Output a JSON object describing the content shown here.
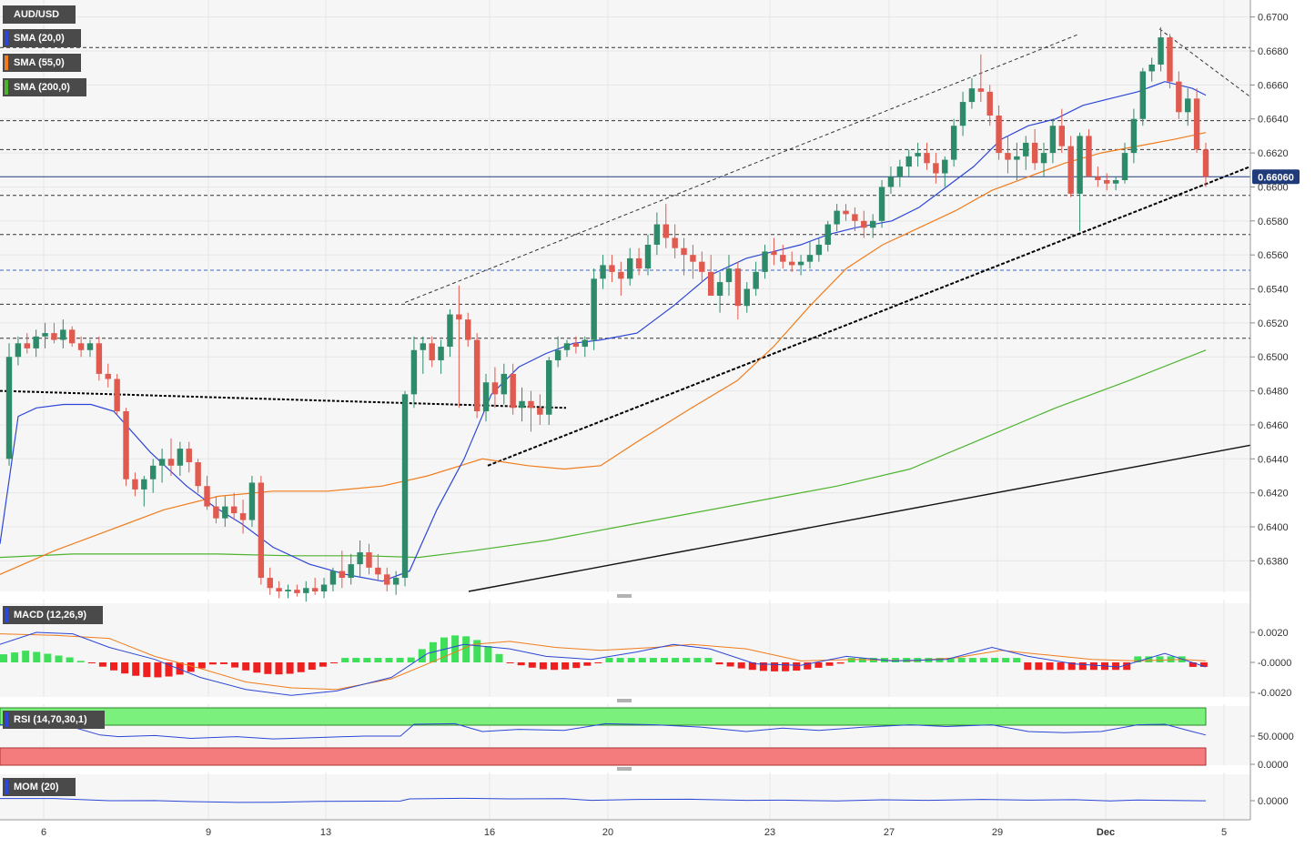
{
  "instrument": "AUD/USD",
  "legend": [
    {
      "label": "SMA (20,0)",
      "color": "#2c46d6"
    },
    {
      "label": "SMA (55,0)",
      "color": "#f07c1c"
    },
    {
      "label": "SMA (200,0)",
      "color": "#4db32f"
    }
  ],
  "last_price": "0.66060",
  "price_axis": [
    "0.6700",
    "0.6680",
    "0.6660",
    "0.6640",
    "0.6620",
    "0.6600",
    "0.6580",
    "0.6560",
    "0.6540",
    "0.6520",
    "0.6500",
    "0.6480",
    "0.6460",
    "0.6440",
    "0.6420",
    "0.6400",
    "0.6380"
  ],
  "x_axis": [
    "6",
    "9",
    "13",
    "16",
    "20",
    "23",
    "27",
    "29",
    "Dec",
    "5"
  ],
  "panels": {
    "macd": {
      "label": "MACD (12,26,9)",
      "ticks": [
        "0.0020",
        "-0.0000",
        "-0.0020"
      ]
    },
    "rsi": {
      "label": "RSI (14,70,30,1)",
      "ticks": [
        "50.0000",
        "0.0000"
      ]
    },
    "mom": {
      "label": "MOM (20)",
      "ticks": [
        "0.0000"
      ]
    }
  },
  "colors": {
    "bull": "#2e8b6a",
    "bear": "#e05a50",
    "sma20": "#2c46d6",
    "sma55": "#f07c1c",
    "sma200": "#4db32f",
    "macd_pos": "#3ee05a",
    "macd_neg": "#ef1f1f",
    "rsi_over": "#7cf07c",
    "rsi_under": "#f47c7c"
  },
  "chart_data": {
    "type": "candlestick",
    "title": "AUD/USD",
    "ylim": [
      0.6362,
      0.671
    ],
    "horizontal_levels": [
      0.6682,
      0.6639,
      0.6622,
      0.6595,
      0.6572,
      0.6551,
      0.6531,
      0.6511
    ],
    "candles_ohlc": [
      [
        0.644,
        0.6508,
        0.6436,
        0.65
      ],
      [
        0.65,
        0.6512,
        0.6495,
        0.6508
      ],
      [
        0.6508,
        0.6514,
        0.6502,
        0.6505
      ],
      [
        0.6505,
        0.6516,
        0.65,
        0.6512
      ],
      [
        0.6512,
        0.652,
        0.6505,
        0.6514
      ],
      [
        0.6514,
        0.652,
        0.6508,
        0.651
      ],
      [
        0.651,
        0.6522,
        0.6505,
        0.6516
      ],
      [
        0.6516,
        0.6518,
        0.6506,
        0.6508
      ],
      [
        0.6508,
        0.6512,
        0.65,
        0.6504
      ],
      [
        0.6504,
        0.651,
        0.65,
        0.6508
      ],
      [
        0.6508,
        0.6512,
        0.6486,
        0.649
      ],
      [
        0.649,
        0.6496,
        0.6482,
        0.6487
      ],
      [
        0.6487,
        0.649,
        0.6466,
        0.6468
      ],
      [
        0.6468,
        0.647,
        0.6424,
        0.6428
      ],
      [
        0.6428,
        0.6432,
        0.6418,
        0.6422
      ],
      [
        0.6422,
        0.643,
        0.6412,
        0.6428
      ],
      [
        0.6428,
        0.644,
        0.642,
        0.6436
      ],
      [
        0.6436,
        0.6446,
        0.6426,
        0.644
      ],
      [
        0.644,
        0.6452,
        0.643,
        0.6436
      ],
      [
        0.6436,
        0.645,
        0.643,
        0.6446
      ],
      [
        0.6446,
        0.645,
        0.6432,
        0.6438
      ],
      [
        0.6438,
        0.644,
        0.642,
        0.6424
      ],
      [
        0.6424,
        0.643,
        0.641,
        0.6412
      ],
      [
        0.6412,
        0.6418,
        0.6402,
        0.6405
      ],
      [
        0.6405,
        0.6418,
        0.64,
        0.6412
      ],
      [
        0.6412,
        0.642,
        0.6404,
        0.6408
      ],
      [
        0.6408,
        0.6416,
        0.6396,
        0.6404
      ],
      [
        0.6404,
        0.643,
        0.64,
        0.6426
      ],
      [
        0.6426,
        0.643,
        0.6366,
        0.637
      ],
      [
        0.637,
        0.6376,
        0.636,
        0.6364
      ],
      [
        0.6364,
        0.6368,
        0.6358,
        0.6362
      ],
      [
        0.6362,
        0.6366,
        0.6358,
        0.6363
      ],
      [
        0.6363,
        0.6366,
        0.6359,
        0.6361
      ],
      [
        0.6361,
        0.6368,
        0.6356,
        0.6364
      ],
      [
        0.6364,
        0.637,
        0.636,
        0.6362
      ],
      [
        0.6362,
        0.637,
        0.6358,
        0.6366
      ],
      [
        0.6366,
        0.6376,
        0.6362,
        0.6374
      ],
      [
        0.6374,
        0.6386,
        0.6364,
        0.637
      ],
      [
        0.637,
        0.6384,
        0.6366,
        0.6378
      ],
      [
        0.6378,
        0.6392,
        0.637,
        0.6385
      ],
      [
        0.6385,
        0.639,
        0.6372,
        0.6376
      ],
      [
        0.6376,
        0.6384,
        0.6368,
        0.6372
      ],
      [
        0.6372,
        0.6376,
        0.6362,
        0.6366
      ],
      [
        0.6366,
        0.6374,
        0.636,
        0.637
      ],
      [
        0.637,
        0.648,
        0.6365,
        0.6478
      ],
      [
        0.6478,
        0.6512,
        0.647,
        0.6504
      ],
      [
        0.6504,
        0.6512,
        0.649,
        0.6508
      ],
      [
        0.6508,
        0.6512,
        0.6494,
        0.6498
      ],
      [
        0.6498,
        0.651,
        0.649,
        0.6506
      ],
      [
        0.6506,
        0.6528,
        0.65,
        0.6525
      ],
      [
        0.6525,
        0.6542,
        0.647,
        0.6522
      ],
      [
        0.6522,
        0.6526,
        0.6506,
        0.651
      ],
      [
        0.651,
        0.6514,
        0.6464,
        0.6468
      ],
      [
        0.6468,
        0.649,
        0.6462,
        0.6485
      ],
      [
        0.6485,
        0.6494,
        0.647,
        0.6478
      ],
      [
        0.6478,
        0.6496,
        0.6472,
        0.649
      ],
      [
        0.649,
        0.6496,
        0.6466,
        0.647
      ],
      [
        0.647,
        0.6482,
        0.6462,
        0.6474
      ],
      [
        0.6474,
        0.648,
        0.6456,
        0.647
      ],
      [
        0.647,
        0.6478,
        0.646,
        0.6466
      ],
      [
        0.6466,
        0.65,
        0.646,
        0.6498
      ],
      [
        0.6498,
        0.6512,
        0.6494,
        0.6504
      ],
      [
        0.6504,
        0.651,
        0.65,
        0.6508
      ],
      [
        0.6508,
        0.6512,
        0.6502,
        0.6506
      ],
      [
        0.6506,
        0.6512,
        0.65,
        0.651
      ],
      [
        0.651,
        0.6552,
        0.6504,
        0.6546
      ],
      [
        0.6546,
        0.656,
        0.654,
        0.6554
      ],
      [
        0.6554,
        0.656,
        0.6544,
        0.655
      ],
      [
        0.655,
        0.6556,
        0.6536,
        0.6546
      ],
      [
        0.6546,
        0.6564,
        0.6542,
        0.6558
      ],
      [
        0.6558,
        0.6564,
        0.6548,
        0.6552
      ],
      [
        0.6552,
        0.6572,
        0.6548,
        0.6566
      ],
      [
        0.6566,
        0.6585,
        0.656,
        0.6578
      ],
      [
        0.6578,
        0.659,
        0.6564,
        0.657
      ],
      [
        0.657,
        0.6578,
        0.6558,
        0.6564
      ],
      [
        0.6564,
        0.657,
        0.6548,
        0.656
      ],
      [
        0.656,
        0.6566,
        0.6546,
        0.6556
      ],
      [
        0.6556,
        0.6562,
        0.6544,
        0.655
      ],
      [
        0.655,
        0.656,
        0.654,
        0.6536
      ],
      [
        0.6536,
        0.655,
        0.6526,
        0.6544
      ],
      [
        0.6544,
        0.656,
        0.6536,
        0.6552
      ],
      [
        0.6552,
        0.6556,
        0.6522,
        0.653
      ],
      [
        0.653,
        0.6544,
        0.6526,
        0.654
      ],
      [
        0.654,
        0.6556,
        0.6536,
        0.655
      ],
      [
        0.655,
        0.6566,
        0.6546,
        0.6562
      ],
      [
        0.6562,
        0.657,
        0.6554,
        0.656
      ],
      [
        0.656,
        0.6566,
        0.6552,
        0.6556
      ],
      [
        0.6556,
        0.6562,
        0.655,
        0.6554
      ],
      [
        0.6554,
        0.656,
        0.6548,
        0.6556
      ],
      [
        0.6556,
        0.6568,
        0.6552,
        0.656
      ],
      [
        0.656,
        0.657,
        0.6556,
        0.6566
      ],
      [
        0.6566,
        0.658,
        0.6562,
        0.6578
      ],
      [
        0.6578,
        0.659,
        0.6574,
        0.6586
      ],
      [
        0.6586,
        0.659,
        0.658,
        0.6584
      ],
      [
        0.6584,
        0.6588,
        0.6574,
        0.658
      ],
      [
        0.658,
        0.6586,
        0.657,
        0.6576
      ],
      [
        0.6576,
        0.6584,
        0.657,
        0.658
      ],
      [
        0.658,
        0.6604,
        0.6576,
        0.66
      ],
      [
        0.66,
        0.6612,
        0.6596,
        0.6606
      ],
      [
        0.6606,
        0.6616,
        0.66,
        0.6612
      ],
      [
        0.6612,
        0.6622,
        0.6606,
        0.6618
      ],
      [
        0.6618,
        0.6626,
        0.6612,
        0.662
      ],
      [
        0.662,
        0.6626,
        0.661,
        0.6614
      ],
      [
        0.6614,
        0.662,
        0.6602,
        0.6608
      ],
      [
        0.6608,
        0.6618,
        0.66,
        0.6616
      ],
      [
        0.6616,
        0.664,
        0.6612,
        0.6636
      ],
      [
        0.6636,
        0.6656,
        0.663,
        0.665
      ],
      [
        0.665,
        0.6664,
        0.6646,
        0.6658
      ],
      [
        0.6658,
        0.6678,
        0.665,
        0.6656
      ],
      [
        0.6656,
        0.666,
        0.6636,
        0.6642
      ],
      [
        0.6642,
        0.6648,
        0.6616,
        0.662
      ],
      [
        0.662,
        0.663,
        0.6608,
        0.6616
      ],
      [
        0.6616,
        0.6626,
        0.6604,
        0.6618
      ],
      [
        0.6618,
        0.663,
        0.661,
        0.6626
      ],
      [
        0.6626,
        0.6634,
        0.661,
        0.6614
      ],
      [
        0.6614,
        0.6626,
        0.6606,
        0.662
      ],
      [
        0.662,
        0.664,
        0.6614,
        0.6636
      ],
      [
        0.6636,
        0.6646,
        0.662,
        0.6624
      ],
      [
        0.6624,
        0.663,
        0.6594,
        0.6596
      ],
      [
        0.6596,
        0.6632,
        0.6574,
        0.663
      ],
      [
        0.663,
        0.6634,
        0.661,
        0.6606
      ],
      [
        0.6606,
        0.6612,
        0.66,
        0.6604
      ],
      [
        0.6604,
        0.6608,
        0.6598,
        0.6602
      ],
      [
        0.6602,
        0.6606,
        0.6598,
        0.6604
      ],
      [
        0.6604,
        0.6626,
        0.6602,
        0.662
      ],
      [
        0.662,
        0.6646,
        0.6614,
        0.664
      ],
      [
        0.664,
        0.667,
        0.6636,
        0.6668
      ],
      [
        0.6668,
        0.6676,
        0.6662,
        0.6672
      ],
      [
        0.6672,
        0.6694,
        0.6668,
        0.6688
      ],
      [
        0.6688,
        0.669,
        0.6658,
        0.6662
      ],
      [
        0.6662,
        0.6668,
        0.664,
        0.6644
      ],
      [
        0.6644,
        0.6658,
        0.6636,
        0.6652
      ],
      [
        0.6652,
        0.6658,
        0.662,
        0.6622
      ],
      [
        0.6622,
        0.6626,
        0.66,
        0.6606
      ]
    ],
    "sma20": [
      [
        0,
        0.639
      ],
      [
        20,
        0.6465
      ],
      [
        40,
        0.647
      ],
      [
        70,
        0.6472
      ],
      [
        100,
        0.6472
      ],
      [
        125,
        0.6468
      ],
      [
        165,
        0.6444
      ],
      [
        205,
        0.6424
      ],
      [
        235,
        0.6412
      ],
      [
        265,
        0.6402
      ],
      [
        300,
        0.6388
      ],
      [
        340,
        0.6378
      ],
      [
        380,
        0.6372
      ],
      [
        420,
        0.6368
      ],
      [
        450,
        0.6374
      ],
      [
        480,
        0.641
      ],
      [
        510,
        0.644
      ],
      [
        540,
        0.6478
      ],
      [
        570,
        0.6494
      ],
      [
        600,
        0.6502
      ],
      [
        630,
        0.6508
      ],
      [
        660,
        0.651
      ],
      [
        700,
        0.6514
      ],
      [
        740,
        0.653
      ],
      [
        780,
        0.6548
      ],
      [
        820,
        0.6558
      ],
      [
        850,
        0.6562
      ],
      [
        880,
        0.6566
      ],
      [
        910,
        0.6572
      ],
      [
        940,
        0.6576
      ],
      [
        980,
        0.658
      ],
      [
        1010,
        0.6588
      ],
      [
        1040,
        0.66
      ],
      [
        1070,
        0.6612
      ],
      [
        1100,
        0.6628
      ],
      [
        1130,
        0.6636
      ],
      [
        1160,
        0.664
      ],
      [
        1190,
        0.6648
      ],
      [
        1220,
        0.6652
      ],
      [
        1250,
        0.6656
      ],
      [
        1280,
        0.6662
      ],
      [
        1310,
        0.6658
      ],
      [
        1325,
        0.6654
      ]
    ],
    "sma55": [
      [
        0,
        0.6372
      ],
      [
        60,
        0.6386
      ],
      [
        120,
        0.6398
      ],
      [
        180,
        0.641
      ],
      [
        240,
        0.6418
      ],
      [
        300,
        0.6421
      ],
      [
        360,
        0.6421
      ],
      [
        420,
        0.6424
      ],
      [
        470,
        0.643
      ],
      [
        530,
        0.644
      ],
      [
        580,
        0.6436
      ],
      [
        620,
        0.6434
      ],
      [
        660,
        0.6436
      ],
      [
        700,
        0.645
      ],
      [
        760,
        0.647
      ],
      [
        810,
        0.6486
      ],
      [
        850,
        0.6506
      ],
      [
        890,
        0.653
      ],
      [
        930,
        0.6552
      ],
      [
        970,
        0.6566
      ],
      [
        1010,
        0.6576
      ],
      [
        1050,
        0.6586
      ],
      [
        1090,
        0.6598
      ],
      [
        1130,
        0.6606
      ],
      [
        1170,
        0.6614
      ],
      [
        1210,
        0.662
      ],
      [
        1250,
        0.6624
      ],
      [
        1290,
        0.6628
      ],
      [
        1325,
        0.6632
      ]
    ],
    "sma200": [
      [
        0,
        0.6382
      ],
      [
        80,
        0.6384
      ],
      [
        160,
        0.6384
      ],
      [
        240,
        0.6384
      ],
      [
        320,
        0.6383
      ],
      [
        400,
        0.6383
      ],
      [
        460,
        0.6382
      ],
      [
        520,
        0.6386
      ],
      [
        600,
        0.6392
      ],
      [
        680,
        0.64
      ],
      [
        760,
        0.6408
      ],
      [
        840,
        0.6416
      ],
      [
        920,
        0.6424
      ],
      [
        1000,
        0.6434
      ],
      [
        1080,
        0.6452
      ],
      [
        1160,
        0.647
      ],
      [
        1240,
        0.6486
      ],
      [
        1325,
        0.6504
      ]
    ]
  }
}
